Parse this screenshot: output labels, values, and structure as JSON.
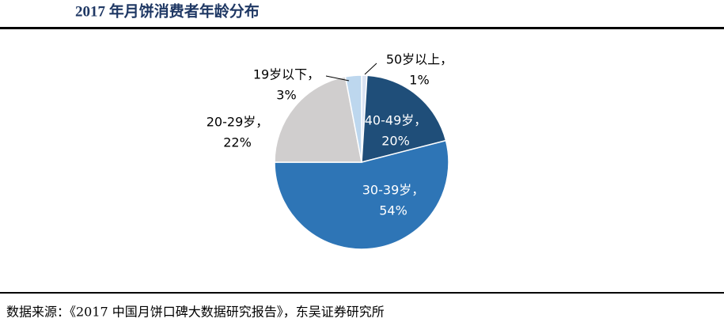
{
  "chart_data": {
    "type": "pie",
    "title": "2017 年月饼消费者年龄分布",
    "categories": [
      "50岁以上，",
      "40-49岁，",
      "30-39岁，",
      "20-29岁，",
      "19岁以下，"
    ],
    "values": [
      1,
      20,
      54,
      22,
      3
    ],
    "value_labels": [
      "1%",
      "20%",
      "54%",
      "22%",
      "3%"
    ],
    "colors": [
      "#dae3f3",
      "#1f4e79",
      "#2e75b6",
      "#d0cece",
      "#bdd7ee"
    ],
    "source": "数据来源：《2017 中国月饼口碑大数据研究报告》，东吴证券研究所"
  }
}
